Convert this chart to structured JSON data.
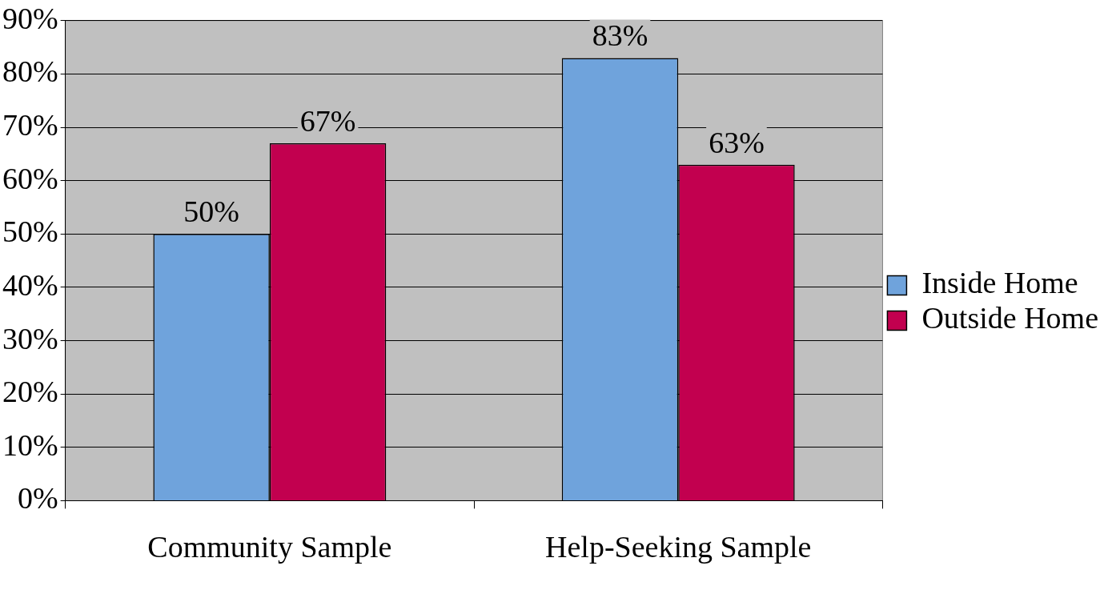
{
  "chart_data": {
    "type": "bar",
    "categories": [
      "Community Sample",
      "Help-Seeking Sample"
    ],
    "series": [
      {
        "name": "Inside Home",
        "color": "#6fa3dc",
        "values": [
          50,
          83
        ],
        "value_labels": [
          "50%",
          "83%"
        ]
      },
      {
        "name": "Outside Home",
        "color": "#c2004f",
        "values": [
          67,
          63
        ],
        "value_labels": [
          "67%",
          "63%"
        ]
      }
    ],
    "ylim": [
      0,
      90
    ],
    "yticks": [
      {
        "value": 0,
        "label": "0%"
      },
      {
        "value": 10,
        "label": "10%"
      },
      {
        "value": 20,
        "label": "20%"
      },
      {
        "value": 30,
        "label": "30%"
      },
      {
        "value": 40,
        "label": "40%"
      },
      {
        "value": 50,
        "label": "50%"
      },
      {
        "value": 60,
        "label": "60%"
      },
      {
        "value": 70,
        "label": "70%"
      },
      {
        "value": 80,
        "label": "80%"
      },
      {
        "value": 90,
        "label": "90%"
      }
    ],
    "grid": "y",
    "legend": "right"
  }
}
